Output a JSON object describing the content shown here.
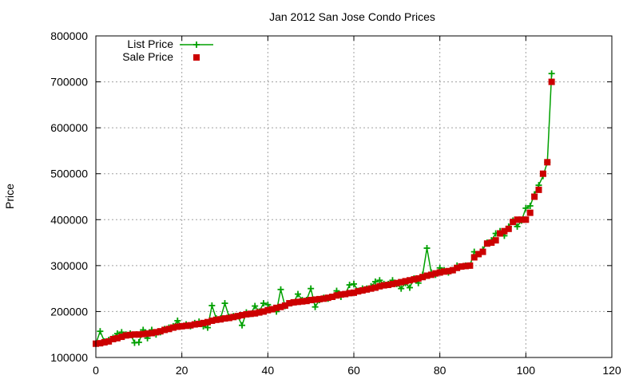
{
  "chart_data": {
    "type": "line",
    "title": "Jan 2012 San Jose Condo Prices",
    "xlabel": "",
    "ylabel": "Price",
    "xlim": [
      0,
      120
    ],
    "ylim": [
      100000,
      800000
    ],
    "x_ticks": [
      0,
      20,
      40,
      60,
      80,
      100,
      120
    ],
    "y_ticks": [
      100000,
      200000,
      300000,
      400000,
      500000,
      600000,
      700000,
      800000
    ],
    "grid": true,
    "legend_position": "top-left",
    "series": [
      {
        "name": "List Price",
        "color": "#00a000",
        "style": "line+plus",
        "x": [
          0,
          1,
          2,
          3,
          4,
          5,
          6,
          7,
          8,
          9,
          10,
          11,
          12,
          13,
          14,
          15,
          16,
          17,
          18,
          19,
          20,
          21,
          22,
          23,
          24,
          25,
          26,
          27,
          28,
          29,
          30,
          31,
          32,
          33,
          34,
          35,
          36,
          37,
          38,
          39,
          40,
          41,
          42,
          43,
          44,
          45,
          46,
          47,
          48,
          49,
          50,
          51,
          52,
          53,
          54,
          55,
          56,
          57,
          58,
          59,
          60,
          61,
          62,
          63,
          64,
          65,
          66,
          67,
          68,
          69,
          70,
          71,
          72,
          73,
          74,
          75,
          76,
          77,
          78,
          79,
          80,
          81,
          82,
          83,
          84,
          85,
          86,
          87,
          88,
          89,
          90,
          91,
          92,
          93,
          94,
          95,
          96,
          97,
          98,
          99,
          100,
          101,
          102,
          103,
          104,
          105,
          106
        ],
        "values": [
          130000,
          157000,
          135000,
          138000,
          143000,
          152000,
          155000,
          150000,
          152000,
          132000,
          133000,
          160000,
          142000,
          160000,
          150000,
          155000,
          162000,
          165000,
          168000,
          180000,
          168000,
          172000,
          168000,
          175000,
          178000,
          168000,
          165000,
          213000,
          185000,
          185000,
          218000,
          188000,
          190000,
          190000,
          170000,
          198000,
          195000,
          212000,
          200000,
          218000,
          215000,
          205000,
          200000,
          248000,
          212000,
          218000,
          220000,
          238000,
          225000,
          225000,
          250000,
          210000,
          225000,
          230000,
          228000,
          232000,
          245000,
          232000,
          238000,
          258000,
          260000,
          245000,
          250000,
          250000,
          255000,
          265000,
          268000,
          260000,
          260000,
          268000,
          260000,
          250000,
          262000,
          252000,
          272000,
          262000,
          280000,
          338000,
          285000,
          280000,
          295000,
          290000,
          285000,
          290000,
          300000,
          298000,
          300000,
          300000,
          330000,
          325000,
          335000,
          350000,
          355000,
          370000,
          375000,
          365000,
          385000,
          398000,
          385000,
          398000,
          425000,
          430000,
          455000,
          475000,
          495000,
          525000,
          718000
        ]
      },
      {
        "name": "Sale Price",
        "color": "#cc0000",
        "style": "square",
        "x": [
          0,
          1,
          2,
          3,
          4,
          5,
          6,
          7,
          8,
          9,
          10,
          11,
          12,
          13,
          14,
          15,
          16,
          17,
          18,
          19,
          20,
          21,
          22,
          23,
          24,
          25,
          26,
          27,
          28,
          29,
          30,
          31,
          32,
          33,
          34,
          35,
          36,
          37,
          38,
          39,
          40,
          41,
          42,
          43,
          44,
          45,
          46,
          47,
          48,
          49,
          50,
          51,
          52,
          53,
          54,
          55,
          56,
          57,
          58,
          59,
          60,
          61,
          62,
          63,
          64,
          65,
          66,
          67,
          68,
          69,
          70,
          71,
          72,
          73,
          74,
          75,
          76,
          77,
          78,
          79,
          80,
          81,
          82,
          83,
          84,
          85,
          86,
          87,
          88,
          89,
          90,
          91,
          92,
          93,
          94,
          95,
          96,
          97,
          98,
          99,
          100,
          101,
          102,
          103,
          104,
          105,
          106
        ],
        "values": [
          130000,
          131000,
          133000,
          135000,
          140000,
          142000,
          145000,
          148000,
          149000,
          150000,
          150000,
          151000,
          152000,
          153000,
          155000,
          157000,
          160000,
          162000,
          165000,
          167000,
          168000,
          169000,
          170000,
          172000,
          173000,
          175000,
          177000,
          180000,
          182000,
          183000,
          185000,
          186000,
          188000,
          190000,
          192000,
          194000,
          195000,
          196000,
          198000,
          200000,
          203000,
          205000,
          208000,
          210000,
          213000,
          218000,
          220000,
          221000,
          222000,
          223000,
          225000,
          226000,
          227000,
          228000,
          230000,
          232000,
          235000,
          237000,
          238000,
          240000,
          241000,
          244000,
          246000,
          248000,
          250000,
          252000,
          255000,
          257000,
          258000,
          260000,
          262000,
          264000,
          266000,
          268000,
          270000,
          272000,
          275000,
          278000,
          280000,
          283000,
          285000,
          287000,
          288000,
          290000,
          295000,
          298000,
          299000,
          300000,
          318000,
          325000,
          330000,
          348000,
          350000,
          355000,
          370000,
          375000,
          380000,
          395000,
          400000,
          400000,
          400000,
          415000,
          450000,
          465000,
          500000,
          525000,
          700000
        ]
      }
    ]
  }
}
